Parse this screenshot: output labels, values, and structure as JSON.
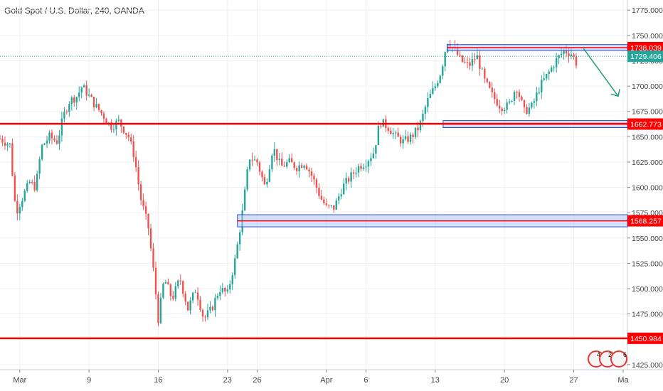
{
  "header": {
    "title": "Gold Spot / U.S. Dollar, 240, OANDA"
  },
  "colors": {
    "up": "#26a69a",
    "down": "#ef5350",
    "level_line": "#ff0000",
    "zone_fill": "#aec6ff",
    "zone_stroke": "#3050d0",
    "last_price_bg": "#26a69a",
    "arrow": "#20a070",
    "grid": "#eef0f4",
    "axis_text": "#444444"
  },
  "calendar_badges": [
    {
      "icon": "us-flag-icon",
      "count": "4"
    },
    {
      "icon": "us-flag-icon",
      "count": "2"
    },
    {
      "icon": "us-flag-icon",
      "count": "6"
    }
  ],
  "chart_data": {
    "type": "candlestick",
    "title": "Gold Spot / U.S. Dollar, 240, OANDA",
    "ylim": [
      1420,
      1785
    ],
    "y_ticks": [
      1425,
      1450,
      1475,
      1500,
      1525,
      1550,
      1575,
      1600,
      1625,
      1650,
      1675,
      1700,
      1725,
      1750,
      1775
    ],
    "y_tick_labels": [
      "1425.000",
      "1450.000",
      "1475.000",
      "1500.000",
      "1525.000",
      "1550.000",
      "1575.000",
      "1600.000",
      "1625.000",
      "1650.000",
      "1675.000",
      "1700.000",
      "1725.000",
      "1750.000",
      "1775.000"
    ],
    "x_ticks": [
      {
        "label": "Mar",
        "t": 2
      },
      {
        "label": "9",
        "t": 9
      },
      {
        "label": "16",
        "t": 16
      },
      {
        "label": "23",
        "t": 23
      },
      {
        "label": "26",
        "t": 26
      },
      {
        "label": "Apr",
        "t": 33
      },
      {
        "label": "6",
        "t": 37
      },
      {
        "label": "13",
        "t": 44
      },
      {
        "label": "20",
        "t": 51
      },
      {
        "label": "27",
        "t": 58
      },
      {
        "label": "Ma",
        "t": 63
      }
    ],
    "x_range": [
      0,
      63
    ],
    "grid": true,
    "price_path": [
      [
        0,
        1648
      ],
      [
        1,
        1642
      ],
      [
        1.6,
        1575
      ],
      [
        2.5,
        1595
      ],
      [
        3,
        1605
      ],
      [
        3.6,
        1600
      ],
      [
        4.2,
        1640
      ],
      [
        5,
        1650
      ],
      [
        5.8,
        1645
      ],
      [
        6.4,
        1670
      ],
      [
        7,
        1685
      ],
      [
        7.8,
        1690
      ],
      [
        8.3,
        1700
      ],
      [
        9,
        1690
      ],
      [
        9.7,
        1680
      ],
      [
        10.5,
        1670
      ],
      [
        11.2,
        1660
      ],
      [
        12,
        1665
      ],
      [
        13,
        1650
      ],
      [
        13.6,
        1630
      ],
      [
        14.2,
        1590
      ],
      [
        15,
        1560
      ],
      [
        15.6,
        1510
      ],
      [
        16,
        1470
      ],
      [
        16.6,
        1510
      ],
      [
        17.4,
        1490
      ],
      [
        18.2,
        1510
      ],
      [
        19,
        1480
      ],
      [
        19.8,
        1500
      ],
      [
        20.6,
        1470
      ],
      [
        21.4,
        1480
      ],
      [
        22.2,
        1500
      ],
      [
        23,
        1495
      ],
      [
        23.8,
        1530
      ],
      [
        24.5,
        1575
      ],
      [
        25.2,
        1630
      ],
      [
        26,
        1625
      ],
      [
        26.8,
        1600
      ],
      [
        27.6,
        1640
      ],
      [
        28.4,
        1620
      ],
      [
        29.2,
        1625
      ],
      [
        30,
        1620
      ],
      [
        30.8,
        1625
      ],
      [
        31.6,
        1610
      ],
      [
        32.4,
        1590
      ],
      [
        33,
        1580
      ],
      [
        33.8,
        1580
      ],
      [
        34.6,
        1600
      ],
      [
        35.4,
        1610
      ],
      [
        36.2,
        1620
      ],
      [
        37,
        1625
      ],
      [
        37.8,
        1635
      ],
      [
        38.4,
        1665
      ],
      [
        39.2,
        1660
      ],
      [
        40,
        1650
      ],
      [
        40.8,
        1645
      ],
      [
        41.6,
        1650
      ],
      [
        42.4,
        1660
      ],
      [
        43.2,
        1685
      ],
      [
        44,
        1700
      ],
      [
        44.6,
        1715
      ],
      [
        45.2,
        1745
      ],
      [
        45.8,
        1738
      ],
      [
        46.6,
        1725
      ],
      [
        47.4,
        1720
      ],
      [
        48.2,
        1730
      ],
      [
        49,
        1705
      ],
      [
        49.8,
        1690
      ],
      [
        50.6,
        1680
      ],
      [
        51.4,
        1680
      ],
      [
        52.2,
        1700
      ],
      [
        53,
        1675
      ],
      [
        53.8,
        1680
      ],
      [
        54.6,
        1700
      ],
      [
        55.4,
        1712
      ],
      [
        56.2,
        1725
      ],
      [
        57,
        1735
      ],
      [
        57.8,
        1732
      ],
      [
        58.3,
        1722
      ]
    ],
    "levels": [
      {
        "price": 1662.773,
        "label": "1662.773",
        "kind": "line"
      },
      {
        "price": 1450.984,
        "label": "1450.984",
        "kind": "line"
      }
    ],
    "zones": [
      {
        "from_t": 45.2,
        "price_low": 1735,
        "price_high": 1741,
        "label": "1738.039"
      },
      {
        "from_t": 44.8,
        "price_low": 1659,
        "price_high": 1666,
        "label": "1662.773"
      },
      {
        "from_t": 24.0,
        "price_low": 1561,
        "price_high": 1573,
        "label": "1568.257"
      }
    ],
    "last_price": {
      "price": 1729.406,
      "label": "1729.406"
    },
    "arrow": {
      "from": {
        "t": 59,
        "price": 1737
      },
      "to": {
        "t": 62.5,
        "price": 1690
      }
    }
  }
}
